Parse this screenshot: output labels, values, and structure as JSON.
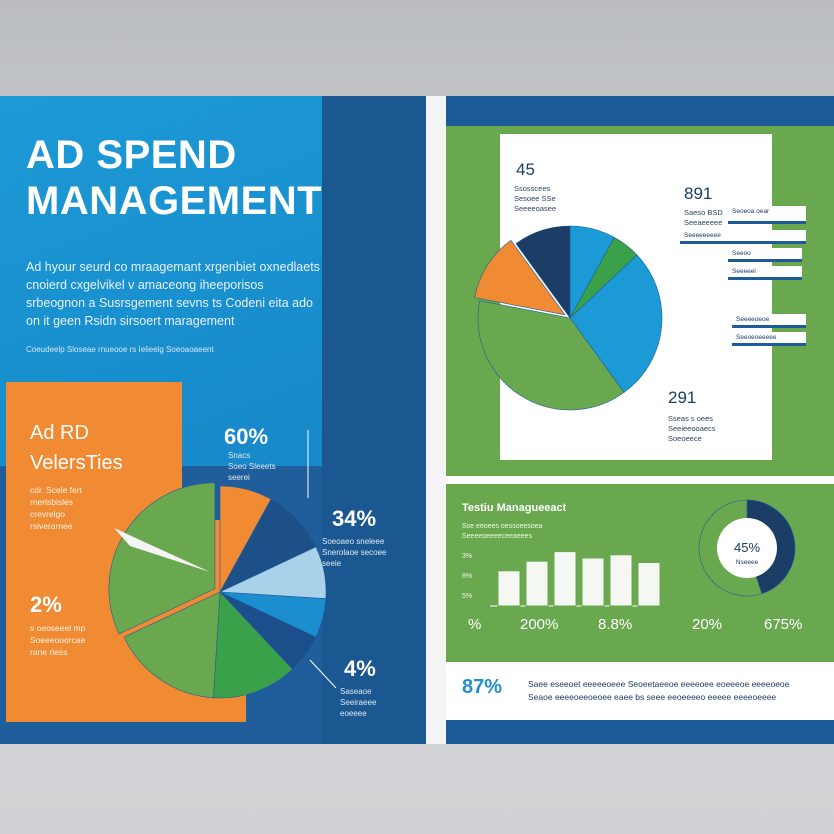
{
  "left_page": {
    "title_line1": "AD SPEND",
    "title_line2": "MANAGEMENT",
    "intro_lines": [
      "Ad hyour seurd co mraagemant xrgenbiet oxnedlaets",
      "cnoierd cxgelvikel v amaceong iheeporisos",
      "srbeognon a Susrsgement sevns ts Codeni eita ado",
      "on it geen Rsidn sirsoert maragement"
    ],
    "intro_caption": "Coeudeelp Sloseae rnueooe rs Ielieelg Soeoaoaeent",
    "orange_heading_line1": "Ad RD",
    "orange_heading_line2": "VelersTies",
    "orange_small_lines": [
      "cdr. Scele fert",
      "rnerlsbisles",
      "crevrelgo",
      "rsiverarnee"
    ],
    "orange_pct": "2%",
    "orange_pct_caption": [
      "s oeoseeel mp",
      "Soeeeooorcae",
      "rane riess"
    ],
    "callouts": [
      {
        "pct": "60%",
        "caption": [
          "Snacs",
          "Soeo Sleeets",
          "seerei"
        ]
      },
      {
        "pct": "34%",
        "caption": [
          "Soeoaeo sneleee",
          "Snerolaoe secoee",
          "seeie"
        ]
      },
      {
        "pct": "4%",
        "caption": [
          "Saseaoe",
          "Seeiraeee",
          "eoeeee"
        ]
      }
    ]
  },
  "right_page": {
    "card_values": [
      {
        "num": "45",
        "caption": [
          "Ssosscees",
          "Sesoee SSe",
          "Seeeeoasee"
        ]
      },
      {
        "num": "891",
        "caption": [
          "Saeso BSD",
          "Seeaeeeee"
        ]
      },
      {
        "num": "291",
        "caption": [
          "Sseas s oees",
          "Seeieeooaecs",
          "Soeoeece"
        ]
      }
    ],
    "legend_cards": [
      "Seoeoa oear",
      "Seeeeeeeee",
      "Seeoo",
      "Seeeeel",
      "Seeeeoeoe",
      "Seeoeoeeeee"
    ],
    "section2_title": "Testiu Managueeact",
    "section2_tiny": [
      "Sse eeoees oessoeesoea",
      "Seeeeoeeeeceeaeees"
    ],
    "bar_axis_labels": [
      "3%",
      "8%",
      "5%"
    ],
    "section2_pcts": [
      "%",
      "200%",
      "8.8%",
      "20%",
      "675%"
    ],
    "donut_value": "45%",
    "donut_label": "Nseeee",
    "footer_pct": "87%",
    "footer_lines": [
      "Saee eseeoet eeeeeoeee Seoeetaeeoe eeeeoee eoeeeoe eeeeoeoe",
      "Seaoe eeeeoeeoeoee eaee bs seee eeoeeeeo eeeee eeeeoeeee"
    ]
  },
  "colors": {
    "blue_dark": "#1d5c98",
    "blue_mid": "#1f5e9a",
    "blue_light": "#1c9ad6",
    "green": "#6aa84f",
    "orange": "#f08a33",
    "navy": "#1b3d66"
  },
  "chart_data": [
    {
      "type": "pie",
      "name": "left-pie",
      "labels": [
        "",
        "",
        "",
        "",
        "",
        "",
        "",
        ""
      ],
      "values": [
        8,
        10,
        8,
        6,
        6,
        13,
        17,
        32
      ],
      "colors": [
        "#f08a33",
        "#1d4f88",
        "#a9d2ea",
        "#1c8ed0",
        "#1b4f8c",
        "#3aa04a",
        "#6aa84f",
        "#6aa84f"
      ]
    },
    {
      "type": "pie",
      "name": "right-pie",
      "labels": [
        "",
        "",
        "",
        "",
        "",
        ""
      ],
      "values": [
        8,
        5,
        27,
        38,
        12,
        10
      ],
      "colors": [
        "#1c9ad6",
        "#3aa04a",
        "#1c9ad6",
        "#6aa84f",
        "#f08a33",
        "#1b3d66"
      ]
    },
    {
      "type": "bar",
      "name": "section2-bars",
      "categories": [
        "",
        "",
        "",
        "",
        "",
        ""
      ],
      "series": [
        {
          "values": [
            55,
            70,
            85,
            75,
            80,
            68
          ]
        }
      ],
      "ylim": [
        0,
        100
      ]
    },
    {
      "type": "pie",
      "name": "donut",
      "values": [
        45,
        55
      ],
      "colors": [
        "#1b3d66",
        "#6aa84f"
      ]
    }
  ]
}
